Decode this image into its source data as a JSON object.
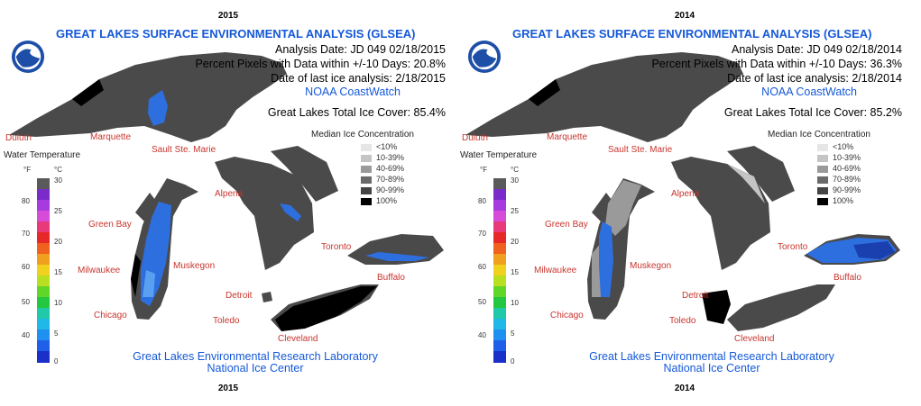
{
  "panels": [
    {
      "year_top": "2015",
      "year_bottom": "2015",
      "title": "GREAT LAKES SURFACE ENVIRONMENTAL ANALYSIS (GLSEA)",
      "analysis_date": "Analysis Date:  JD 049 02/18/2015",
      "percent_pixels": "Percent Pixels with Data within +/-10 Days:  20.8%",
      "last_ice": "Date of last ice analysis: 2/18/2015",
      "coastwatch": "NOAA CoastWatch",
      "total_ice": "Great Lakes Total Ice Cover:  85.4%",
      "credit_1": "Great Lakes Environmental Research Laboratory",
      "credit_2": "National Ice Center"
    },
    {
      "year_top": "2014",
      "year_bottom": "2014",
      "title": "GREAT LAKES SURFACE ENVIRONMENTAL ANALYSIS (GLSEA)",
      "analysis_date": "Analysis Date:  JD 049 02/18/2014",
      "percent_pixels": "Percent Pixels with Data within +/-10 Days:  36.3%",
      "last_ice": "Date of last ice analysis: 2/18/2014",
      "coastwatch": "NOAA CoastWatch",
      "total_ice": "Great Lakes Total Ice Cover:  85.2%",
      "credit_1": "Great Lakes Environmental Research Laboratory",
      "credit_2": "National Ice Center"
    }
  ],
  "cities": {
    "duluth": "Duluth",
    "marquette": "Marquette",
    "sault": "Sault Ste. Marie",
    "alpena": "Alpena",
    "greenbay": "Green Bay",
    "milwaukee": "Milwaukee",
    "muskegon": "Muskegon",
    "chicago": "Chicago",
    "toronto": "Toronto",
    "buffalo": "Buffalo",
    "detroit": "Detroit",
    "toledo": "Toledo",
    "cleveland": "Cleveland"
  },
  "water_temp": {
    "title": "Water Temperature",
    "unit_f": "°F",
    "unit_c": "°C",
    "f_ticks": [
      "80",
      "70",
      "60",
      "50",
      "40"
    ],
    "c_ticks": [
      "30",
      "25",
      "20",
      "15",
      "10",
      "5",
      "0"
    ]
  },
  "ice_legend": {
    "title": "Median Ice Concentration",
    "items": [
      {
        "label": "<10%",
        "color": "#e6e6e6"
      },
      {
        "label": "10-39%",
        "color": "#c4c4c4"
      },
      {
        "label": "40-69%",
        "color": "#9a9a9a"
      },
      {
        "label": "70-89%",
        "color": "#6a6a6a"
      },
      {
        "label": "90-99%",
        "color": "#444444"
      },
      {
        "label": "100%",
        "color": "#000000"
      }
    ]
  },
  "colors": {
    "title_blue": "#1458d8",
    "city_red": "#c8352e",
    "lake_ice": "#4a4a4a",
    "open_water_blue": "#2e6fe0"
  }
}
